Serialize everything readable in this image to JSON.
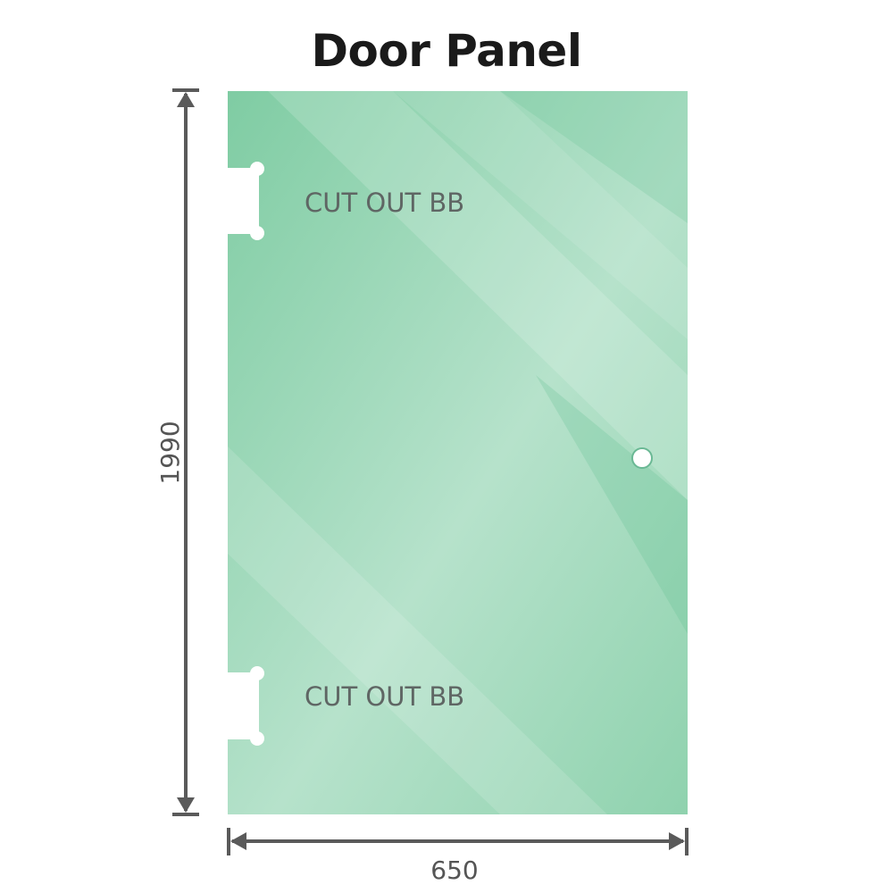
{
  "title": "Door Panel",
  "panel": {
    "color": "#86cfa9",
    "cutout_labels": [
      "CUT OUT BB",
      "CUT OUT BB"
    ]
  },
  "dimensions": {
    "height": "1990",
    "width": "650"
  }
}
